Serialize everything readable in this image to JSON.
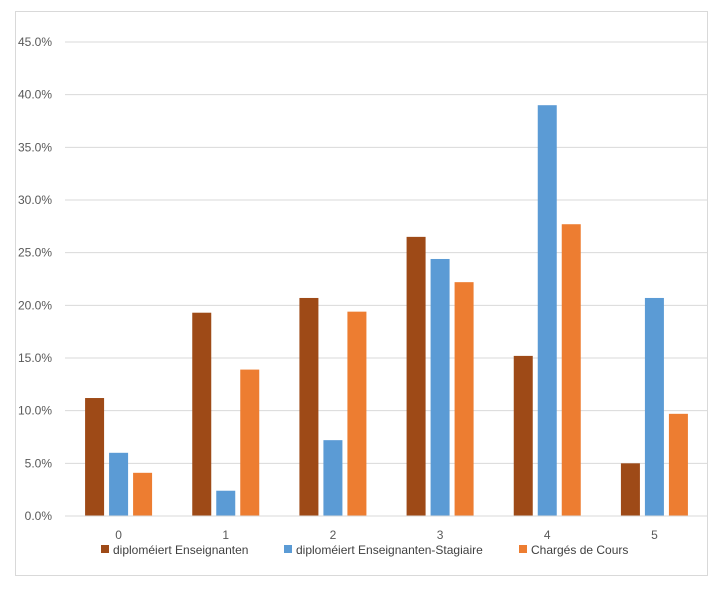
{
  "chart_data": {
    "type": "bar",
    "title": "",
    "xlabel": "",
    "ylabel": "",
    "categories": [
      "0",
      "1",
      "2",
      "3",
      "4",
      "5"
    ],
    "ylim": [
      0,
      45
    ],
    "y_ticks": [
      0,
      5,
      10,
      15,
      20,
      25,
      30,
      35,
      40,
      45
    ],
    "y_tick_labels": [
      "0.0%",
      "5.0%",
      "10.0%",
      "15.0%",
      "20.0%",
      "25.0%",
      "30.0%",
      "35.0%",
      "40.0%",
      "45.0%"
    ],
    "grid": true,
    "legend_position": "bottom",
    "series": [
      {
        "name": "diploméiert Enseignanten",
        "color": "#9E4A17",
        "values": [
          11.2,
          19.3,
          20.7,
          26.5,
          15.2,
          5.0
        ]
      },
      {
        "name": "diploméiert Enseignanten-Stagiaire",
        "color": "#5B9BD5",
        "values": [
          6.0,
          2.4,
          7.2,
          24.4,
          39.0,
          20.7
        ]
      },
      {
        "name": "Chargés de Cours",
        "color": "#ED7D31",
        "values": [
          4.1,
          13.9,
          19.4,
          22.2,
          27.7,
          9.7
        ]
      }
    ]
  }
}
